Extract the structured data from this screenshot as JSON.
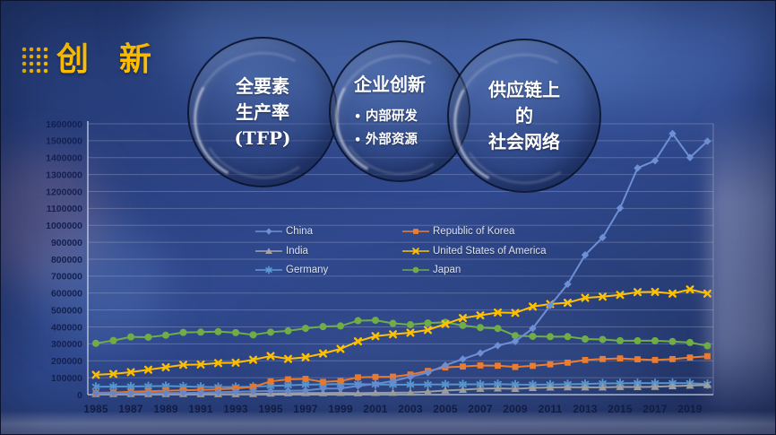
{
  "header": {
    "title": "创 新",
    "accent_color": "#FFC000"
  },
  "bubbles": [
    {
      "lines": [
        "全要素",
        "生产率",
        "(TFP)"
      ]
    },
    {
      "title": "企业创新",
      "bullets": [
        "内部研发",
        "外部资源"
      ]
    },
    {
      "lines": [
        "供应链上",
        "的",
        "社会网络"
      ]
    }
  ],
  "chart_data": {
    "type": "line",
    "title": "",
    "xlabel": "",
    "ylabel": "",
    "grid": true,
    "legend_position": "inside-top, two columns",
    "ylim": [
      0,
      1600000
    ],
    "y_tick_interval": 100000,
    "y_tick_labels": [
      "0",
      "100000",
      "200000",
      "300000",
      "400000",
      "500000",
      "600000",
      "700000",
      "800000",
      "900000",
      "1000000",
      "1100000",
      "1200000",
      "1300000",
      "1400000",
      "1500000",
      "1600000"
    ],
    "x_tick_labels": [
      "1985",
      "1987",
      "1989",
      "1991",
      "1993",
      "1995",
      "1997",
      "1999",
      "2001",
      "2003",
      "2005",
      "2007",
      "2009",
      "2011",
      "2013",
      "2015",
      "2017",
      "2019"
    ],
    "years": [
      1985,
      1986,
      1987,
      1988,
      1989,
      1990,
      1991,
      1992,
      1993,
      1994,
      1995,
      1996,
      1997,
      1998,
      1999,
      2000,
      2001,
      2002,
      2003,
      2004,
      2005,
      2006,
      2007,
      2008,
      2009,
      2010,
      2011,
      2012,
      2013,
      2014,
      2015,
      2016,
      2017,
      2018,
      2019,
      2020
    ],
    "series": [
      {
        "name": "China",
        "color": "#6E8FD5",
        "marker": "diamond",
        "values": [
          8600,
          9200,
          9900,
          10300,
          9900,
          10100,
          11400,
          14400,
          16700,
          19000,
          21600,
          22700,
          24700,
          35960,
          36700,
          51700,
          63200,
          80200,
          105300,
          130100,
          173300,
          210500,
          245200,
          289800,
          314600,
          391200,
          526400,
          652800,
          825100,
          928200,
          1101900,
          1338500,
          1381600,
          1542000,
          1400700,
          1497200
        ]
      },
      {
        "name": "Republic of Korea",
        "color": "#ED7D31",
        "marker": "square",
        "values": [
          10600,
          12800,
          17100,
          20100,
          23300,
          25800,
          28100,
          31100,
          36500,
          45700,
          78500,
          90300,
          92700,
          75200,
          80600,
          102000,
          104600,
          106100,
          118700,
          140100,
          160900,
          166200,
          172500,
          170600,
          163500,
          170100,
          178900,
          188900,
          204600,
          210300,
          213700,
          208800,
          204800,
          210000,
          219000,
          226800
        ]
      },
      {
        "name": "India",
        "color": "#A5A5A5",
        "marker": "triangle",
        "values": [
          3950,
          3850,
          3830,
          3740,
          3870,
          3980,
          3500,
          3300,
          3570,
          4290,
          6570,
          8290,
          10160,
          8950,
          10700,
          8500,
          10600,
          11500,
          12600,
          17500,
          24400,
          28900,
          35200,
          36800,
          34300,
          39800,
          42300,
          43700,
          43000,
          42900,
          45700,
          45100,
          46600,
          50100,
          53600,
          56800
        ]
      },
      {
        "name": "United States of America",
        "color": "#FFC000",
        "marker": "x",
        "values": [
          117000,
          122400,
          133000,
          147300,
          161700,
          176300,
          178100,
          186500,
          188700,
          206100,
          228200,
          211000,
          220800,
          243100,
          270200,
          315000,
          345700,
          356500,
          366000,
          382100,
          417500,
          452600,
          468300,
          485300,
          482900,
          520300,
          535200,
          542800,
          571600,
          578800,
          589400,
          605600,
          607000,
          597100,
          621500,
          597200
        ]
      },
      {
        "name": "Germany",
        "color": "#5B9BD5",
        "marker": "asterisk",
        "values": [
          46400,
          47600,
          48200,
          49500,
          50700,
          48400,
          45500,
          44600,
          45000,
          47300,
          51900,
          55000,
          58800,
          61000,
          62500,
          62100,
          60500,
          59200,
          59200,
          60100,
          60200,
          60600,
          60900,
          62400,
          59600,
          59200,
          59400,
          61300,
          63200,
          66000,
          66900,
          67900,
          67700,
          67900,
          67400,
          62100
        ]
      },
      {
        "name": "Japan",
        "color": "#70AD47",
        "marker": "circle",
        "values": [
          303000,
          320100,
          341100,
          339400,
          351200,
          367600,
          369400,
          371900,
          366500,
          353300,
          369200,
          376600,
          391600,
          401900,
          405700,
          436900,
          439200,
          421000,
          413100,
          423100,
          427100,
          408700,
          396300,
          391000,
          348600,
          344600,
          342600,
          342800,
          328400,
          326000,
          318700,
          318400,
          318500,
          313600,
          308000,
          288500
        ]
      }
    ]
  }
}
